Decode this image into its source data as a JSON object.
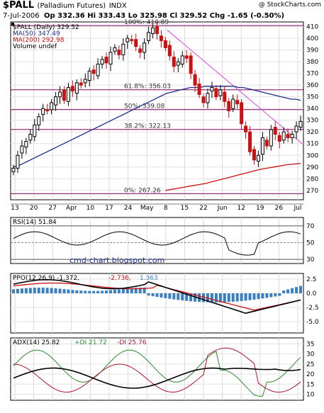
{
  "header": {
    "symbol": "$PALL",
    "name": "(Palladium Futures)",
    "exchange": "INDX",
    "date": "7-Jul-2006",
    "quote": "Op 332.36 Hi 333.43 Lo 325.98 Cl 329.52 Chg -1.65 (-0.50%)",
    "credit": "@ StockCharts.com"
  },
  "price_panel": {
    "legend": [
      {
        "text": "$PALL (Daily) 329.52",
        "color": "#000000"
      },
      {
        "text": "MA(50) 347.49",
        "color": "#1a2c8c"
      },
      {
        "text": "MA(200) 292.98",
        "color": "#cc1111"
      },
      {
        "text": "Volume undef",
        "color": "#000000"
      }
    ],
    "fib_labels": [
      "100%: 410.89",
      "61.8%: 356.03",
      "50%: 339.08",
      "38.2%: 322.13",
      "0%: 267.26"
    ],
    "watermark": "cmd-chart.blogspot.com"
  },
  "x_axis": {
    "labels": [
      "13",
      "20",
      "27",
      "Apr",
      "10",
      "17",
      "24",
      "May",
      "8",
      "15",
      "22",
      "Jun",
      "12",
      "19",
      "26",
      "Jul"
    ]
  },
  "rsi_panel": {
    "legend": "RSI(14) 51.84",
    "ticks": [
      "70",
      "50",
      "30"
    ]
  },
  "ppo_panel": {
    "legend_main": "PPO(12,26,9) -1.372,",
    "legend_sig": "-2.736,",
    "legend_hist": "1.363",
    "ticks": [
      "2.5",
      "0.0",
      "-2.5",
      "-5.0"
    ]
  },
  "adx_panel": {
    "legend_adx": "ADX(14) 25.82",
    "legend_pdi": "+DI 21.72",
    "legend_mdi": "-DI 25.76",
    "ticks": [
      "35",
      "30",
      "25",
      "20",
      "15",
      "10"
    ]
  },
  "colors": {
    "up": "#000000",
    "down": "#cc1111",
    "ma50": "#1a2c8c",
    "ma200": "#cc1111",
    "fib": "#800060",
    "trend": "#e040e0",
    "hist": "#3a7fc0",
    "pdi": "#2a8a2a",
    "mdi": "#b01030"
  },
  "chart_data": {
    "type": "candlestick",
    "x_labels": [
      "13",
      "20",
      "27",
      "Apr",
      "10",
      "17",
      "24",
      "May",
      "8",
      "15",
      "22",
      "Jun",
      "12",
      "19",
      "26",
      "Jul"
    ],
    "price": {
      "ylim": [
        262,
        414
      ],
      "y_ticks": [
        270,
        280,
        290,
        300,
        310,
        320,
        330,
        340,
        350,
        360,
        370,
        380,
        390,
        400,
        410
      ],
      "close": [
        289,
        300,
        308,
        312,
        318,
        326,
        333,
        340,
        338,
        345,
        350,
        354,
        347,
        358,
        355,
        362,
        360,
        365,
        372,
        370,
        378,
        382,
        379,
        388,
        392,
        386,
        395,
        400,
        398,
        393,
        388,
        396,
        405,
        409,
        404,
        398,
        392,
        385,
        376,
        380,
        385,
        383,
        370,
        360,
        352,
        345,
        353,
        358,
        350,
        356,
        346,
        338,
        348,
        344,
        327,
        320,
        303,
        296,
        300,
        315,
        308,
        322,
        318,
        312,
        320,
        315,
        318,
        325,
        329
      ],
      "ma50": [
        290,
        291,
        293,
        295,
        297,
        299,
        301,
        303,
        305,
        307,
        309,
        311,
        313,
        315,
        317,
        319,
        321,
        323,
        325,
        327,
        329,
        331,
        333,
        335,
        337,
        339,
        341,
        343,
        345,
        347,
        349,
        351,
        353,
        354,
        355,
        356,
        357,
        358,
        358,
        358,
        359,
        359,
        359,
        359,
        359,
        359,
        359,
        358,
        358,
        357,
        356,
        355,
        354,
        353,
        352,
        351,
        350,
        349,
        348,
        348,
        347
      ],
      "ma200": [
        270,
        272,
        274,
        276,
        279,
        282,
        285,
        288,
        290,
        292,
        293
      ]
    },
    "rsi": {
      "ylim": [
        25,
        80
      ],
      "ticks": [
        70,
        50,
        30
      ]
    },
    "ppo": {
      "ylim": [
        -7,
        3.5
      ],
      "ticks": [
        2.5,
        0.0,
        -2.5,
        -5.0
      ]
    },
    "adx": {
      "ylim": [
        7,
        38
      ],
      "ticks": [
        35,
        30,
        25,
        20,
        15,
        10
      ]
    }
  }
}
